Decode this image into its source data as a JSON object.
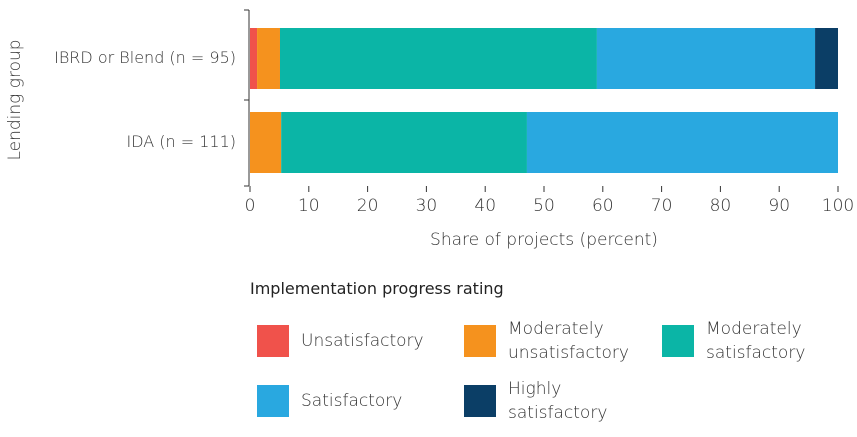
{
  "chart_data": {
    "type": "stacked_bar",
    "orientation": "horizontal",
    "categories": [
      "IBRD or Blend (n = 95)",
      "IDA (n = 111)"
    ],
    "series": [
      {
        "name": "Unsatisfactory",
        "color": "#f0524b",
        "values": [
          1.2,
          0
        ]
      },
      {
        "name": "Moderately unsatisfactory",
        "color": "#f5921e",
        "values": [
          3.9,
          5.3
        ]
      },
      {
        "name": "Moderately satisfactory",
        "color": "#0bb5a6",
        "values": [
          53.9,
          41.8
        ]
      },
      {
        "name": "Satisfactory",
        "color": "#29a8e0",
        "values": [
          37.1,
          52.9
        ]
      },
      {
        "name": "Highly satisfactory",
        "color": "#0b3e66",
        "values": [
          3.9,
          0
        ]
      }
    ],
    "xlim": [
      0,
      100
    ],
    "xticks": [
      0,
      10,
      20,
      30,
      40,
      50,
      60,
      70,
      80,
      90,
      100
    ],
    "x_label": "Share of projects (percent)",
    "y_label": "Lending group",
    "legend_title": "Implementation progress rating"
  }
}
